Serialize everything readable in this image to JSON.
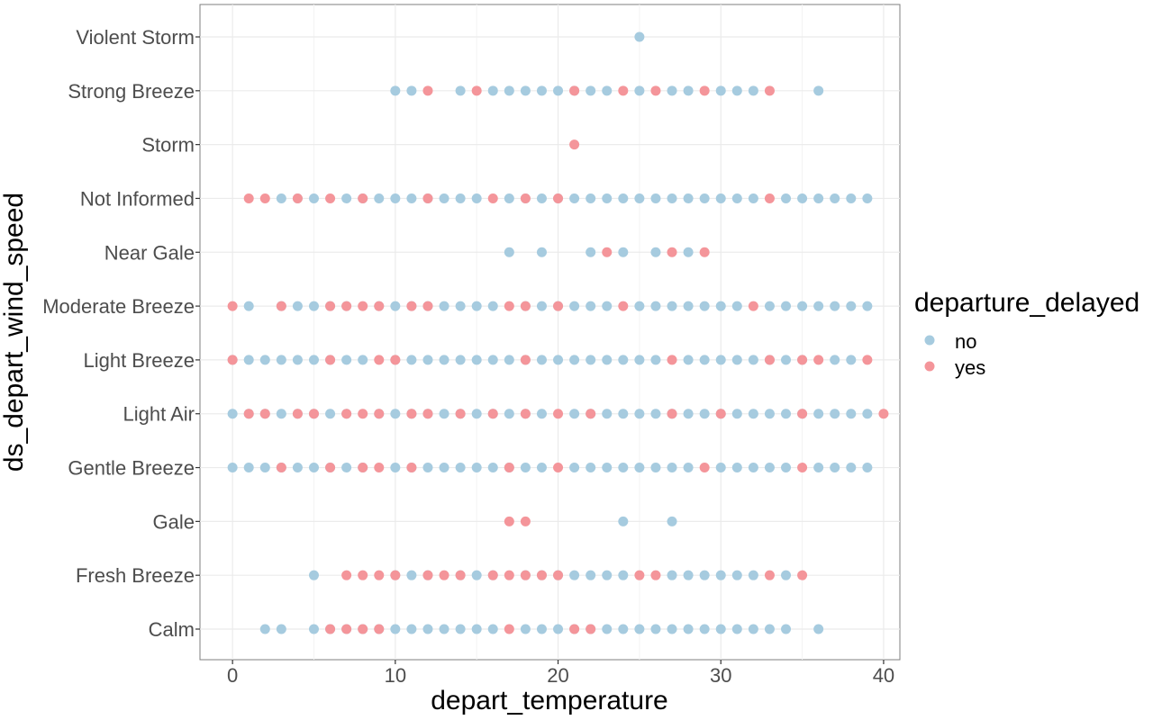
{
  "chart_data": {
    "type": "scatter",
    "xlabel": "depart_temperature",
    "ylabel": "ds_depart_wind_speed",
    "xlim": [
      -2,
      41
    ],
    "x_ticks": [
      0,
      10,
      20,
      30,
      40
    ],
    "grid": true,
    "legend": {
      "title": "departure_delayed",
      "position": "right"
    },
    "categories": [
      "Calm",
      "Fresh Breeze",
      "Gale",
      "Gentle Breeze",
      "Light Air",
      "Light Breeze",
      "Moderate Breeze",
      "Near Gale",
      "Not Informed",
      "Storm",
      "Strong Breeze",
      "Violent Storm"
    ],
    "series": [
      {
        "name": "no",
        "color": "#a6cbdf",
        "points": {
          "Calm": [
            2,
            3,
            5,
            6,
            7,
            8,
            9,
            10,
            11,
            12,
            13,
            14,
            15,
            16,
            18,
            19,
            20,
            21,
            22,
            23,
            24,
            25,
            26,
            27,
            28,
            29,
            30,
            31,
            32,
            33,
            34,
            36
          ],
          "Fresh Breeze": [
            5,
            10,
            11,
            12,
            14,
            15,
            16,
            18,
            19,
            20,
            21,
            22,
            23,
            24,
            27,
            28,
            29,
            30,
            31,
            32,
            34
          ],
          "Gale": [
            24,
            27
          ],
          "Gentle Breeze": [
            0,
            1,
            2,
            3,
            4,
            5,
            6,
            7,
            8,
            10,
            11,
            12,
            13,
            14,
            15,
            16,
            17,
            18,
            19,
            21,
            22,
            23,
            24,
            25,
            26,
            27,
            28,
            30,
            31,
            32,
            33,
            34,
            36,
            37,
            38,
            39
          ],
          "Light Air": [
            0,
            1,
            2,
            3,
            4,
            5,
            6,
            7,
            9,
            10,
            11,
            12,
            13,
            14,
            15,
            16,
            17,
            18,
            19,
            21,
            22,
            23,
            24,
            25,
            26,
            27,
            28,
            29,
            30,
            31,
            32,
            33,
            34,
            35,
            36,
            37,
            38,
            39
          ],
          "Light Breeze": [
            0,
            1,
            2,
            3,
            4,
            5,
            6,
            7,
            8,
            10,
            11,
            12,
            13,
            14,
            15,
            16,
            17,
            18,
            19,
            20,
            21,
            22,
            23,
            24,
            25,
            26,
            28,
            29,
            30,
            31,
            32,
            33,
            34,
            35,
            37,
            38
          ],
          "Moderate Breeze": [
            1,
            3,
            4,
            5,
            6,
            7,
            9,
            10,
            11,
            12,
            13,
            14,
            15,
            16,
            18,
            19,
            20,
            21,
            22,
            23,
            25,
            26,
            27,
            28,
            29,
            30,
            31,
            33,
            34,
            35,
            36,
            37,
            38,
            39
          ],
          "Near Gale": [
            17,
            19,
            22,
            24,
            26,
            28
          ],
          "Not Informed": [
            3,
            4,
            5,
            7,
            8,
            9,
            10,
            11,
            12,
            13,
            14,
            15,
            17,
            18,
            19,
            20,
            21,
            22,
            23,
            24,
            25,
            26,
            27,
            28,
            29,
            30,
            31,
            32,
            34,
            35,
            36,
            37,
            38,
            39
          ],
          "Storm": [],
          "Strong Breeze": [
            10,
            11,
            14,
            16,
            17,
            18,
            19,
            20,
            21,
            22,
            23,
            25,
            27,
            28,
            30,
            31,
            32,
            36
          ],
          "Violent Storm": [
            25
          ]
        }
      },
      {
        "name": "yes",
        "color": "#f4959a",
        "points": {
          "Calm": [
            6,
            7,
            8,
            9,
            17,
            21,
            22
          ],
          "Fresh Breeze": [
            7,
            8,
            9,
            10,
            12,
            13,
            14,
            16,
            17,
            18,
            19,
            20,
            25,
            26,
            33,
            35
          ],
          "Gale": [
            17,
            18
          ],
          "Gentle Breeze": [
            3,
            6,
            8,
            9,
            11,
            17,
            20,
            29,
            35
          ],
          "Light Air": [
            1,
            2,
            4,
            5,
            7,
            8,
            9,
            11,
            12,
            14,
            16,
            18,
            20,
            22,
            27,
            30,
            35,
            40
          ],
          "Light Breeze": [
            0,
            6,
            9,
            10,
            18,
            27,
            33,
            35,
            36,
            39
          ],
          "Moderate Breeze": [
            0,
            3,
            6,
            7,
            8,
            9,
            11,
            12,
            17,
            18,
            20,
            24,
            32
          ],
          "Near Gale": [
            23,
            27,
            29
          ],
          "Not Informed": [
            1,
            2,
            4,
            6,
            8,
            12,
            16,
            18,
            20,
            33
          ],
          "Storm": [
            21
          ],
          "Strong Breeze": [
            12,
            15,
            21,
            24,
            26,
            29,
            33
          ],
          "Violent Storm": []
        }
      }
    ]
  }
}
